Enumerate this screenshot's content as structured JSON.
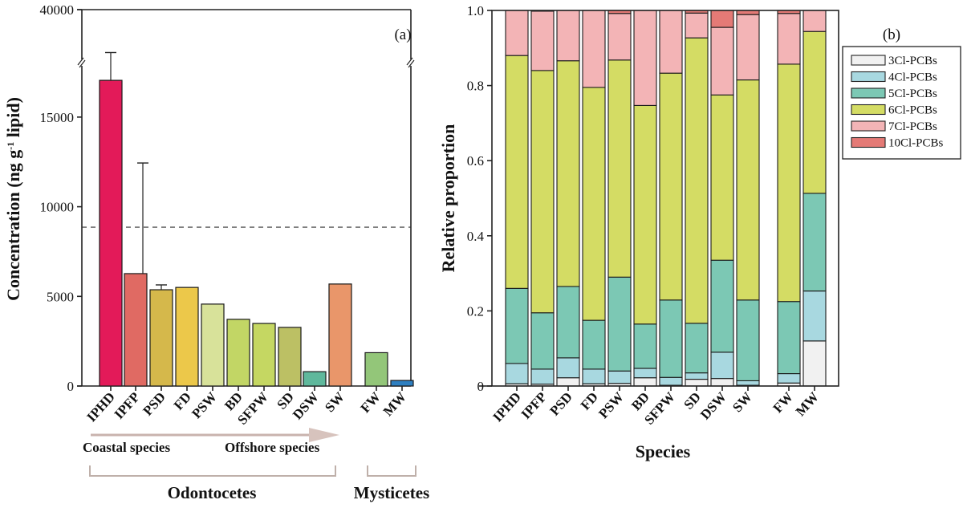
{
  "chart_data": [
    {
      "type": "bar",
      "panel_label": "(a)",
      "title": "",
      "xlabel": "",
      "ylabel": "Concentration (ng g-1 lipid)",
      "ylabel_parts": {
        "main": "Concentration (ng g",
        "sup": "-1",
        "tail": " lipid)"
      },
      "categories": [
        "IPHD",
        "IPFP",
        "PSD",
        "FD",
        "PSW",
        "BD",
        "SFPW",
        "SD",
        "DSW",
        "SW",
        "FW",
        "MW"
      ],
      "values": [
        17050,
        6270,
        5370,
        5500,
        4570,
        3720,
        3490,
        3270,
        800,
        5690,
        1860,
        310
      ],
      "error_upper": [
        18600,
        12440,
        5640,
        null,
        null,
        null,
        null,
        null,
        null,
        null,
        null,
        null
      ],
      "colors": [
        "#e31a59",
        "#e06a63",
        "#d5b84b",
        "#ecc84a",
        "#d8e29a",
        "#c2d665",
        "#c5d762",
        "#bcc064",
        "#5fb89c",
        "#e9966a",
        "#93c679",
        "#2e7fc0"
      ],
      "yticks": [
        0,
        5000,
        10000,
        15000,
        40000
      ],
      "ytick_labels": [
        "0",
        "5000",
        "10000",
        "15000",
        "40000"
      ],
      "ylim": [
        0,
        40000
      ],
      "axis_break": true,
      "reference_line": {
        "value": 8860,
        "style": "dashed"
      },
      "groups": [
        {
          "name": "Odontocetes",
          "members": [
            "IPHD",
            "IPFP",
            "PSD",
            "FD",
            "PSW",
            "BD",
            "SFPW",
            "SD",
            "DSW",
            "SW"
          ]
        },
        {
          "name": "Mysticetes",
          "members": [
            "FW",
            "MW"
          ]
        }
      ],
      "arrow_annotation": {
        "from": "Coastal species",
        "to": "Offshore species"
      },
      "grid": false
    },
    {
      "type": "bar",
      "stacked": true,
      "panel_label": "(b)",
      "title": "",
      "xlabel": "Species",
      "ylabel": "Relative proportion",
      "categories": [
        "IPHD",
        "IPFP",
        "PSD",
        "FD",
        "PSW",
        "BD",
        "SFPW",
        "SD",
        "DSW",
        "SW",
        "FW",
        "MW"
      ],
      "series": [
        {
          "name": "3Cl-PCBs",
          "color": "#f1f1f1",
          "values": [
            0.006,
            0.005,
            0.022,
            0.006,
            0.007,
            0.022,
            0.002,
            0.018,
            0.02,
            0.002,
            0.008,
            0.12
          ]
        },
        {
          "name": "4Cl-PCBs",
          "color": "#a8d8e0",
          "values": [
            0.054,
            0.04,
            0.053,
            0.039,
            0.033,
            0.025,
            0.021,
            0.017,
            0.07,
            0.012,
            0.025,
            0.133
          ]
        },
        {
          "name": "5Cl-PCBs",
          "color": "#7cc8b4",
          "values": [
            0.2,
            0.15,
            0.19,
            0.13,
            0.25,
            0.118,
            0.206,
            0.132,
            0.245,
            0.215,
            0.192,
            0.26
          ]
        },
        {
          "name": "6Cl-PCBs",
          "color": "#d4dc64",
          "values": [
            0.62,
            0.645,
            0.601,
            0.62,
            0.578,
            0.582,
            0.604,
            0.76,
            0.44,
            0.586,
            0.632,
            0.431
          ]
        },
        {
          "name": "7Cl-PCBs",
          "color": "#f3b4b6",
          "values": [
            0.12,
            0.158,
            0.134,
            0.205,
            0.124,
            0.253,
            0.167,
            0.066,
            0.18,
            0.174,
            0.135,
            0.056
          ]
        },
        {
          "name": "10Cl-PCBs",
          "color": "#e47a76",
          "values": [
            0.0,
            0.002,
            0.0,
            0.0,
            0.008,
            0.0,
            0.0,
            0.007,
            0.045,
            0.011,
            0.008,
            0.0
          ]
        }
      ],
      "yticks": [
        0,
        0.2,
        0.4,
        0.6,
        0.8,
        1.0
      ],
      "ytick_labels": [
        "0",
        "0.2",
        "0.4",
        "0.6",
        "0.8",
        "1.0"
      ],
      "ylim": [
        0,
        1.0
      ],
      "legend_position": "right",
      "grid": false
    }
  ]
}
